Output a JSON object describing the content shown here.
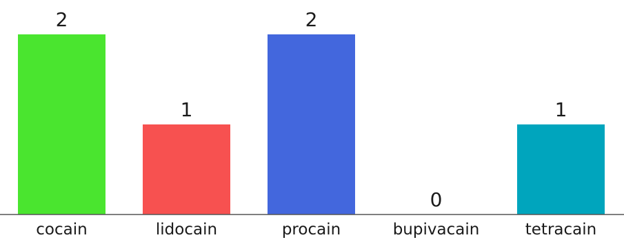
{
  "chart_data": {
    "type": "bar",
    "categories": [
      "cocain",
      "lidocain",
      "procain",
      "bupivacain",
      "tetracain"
    ],
    "values": [
      2,
      1,
      2,
      0,
      1
    ],
    "colors": [
      "#4ae52f",
      "#f75150",
      "#4367dd",
      "#9a9a9a",
      "#00a5bd"
    ],
    "ylim": [
      0,
      2
    ],
    "grid": false,
    "legend": "none",
    "data_labels": true
  }
}
